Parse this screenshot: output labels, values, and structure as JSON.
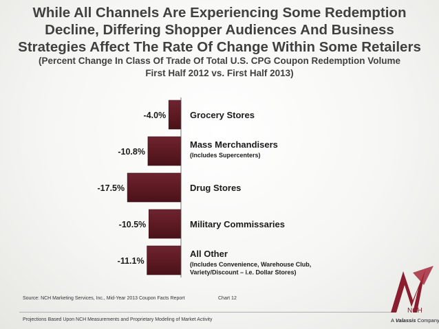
{
  "header": {
    "title_lines": [
      "While All Channels Are Experiencing Some Redemption",
      "Decline, Differing Shopper Audiences And Business",
      "Strategies Affect The Rate Of Change Within Some Retailers"
    ],
    "subtitle_lines": [
      "(Percent Change In Class Of Trade Of Total U.S. CPG Coupon Redemption Volume",
      "First Half 2012 vs. First Half 2013)"
    ]
  },
  "chart_data": {
    "type": "bar",
    "orientation": "horizontal",
    "title": "Percent Change In Class Of Trade Of Total U.S. CPG Coupon Redemption Volume, First Half 2012 vs. First Half 2013",
    "categories": [
      "Grocery Stores",
      "Mass Merchandisers",
      "Drug Stores",
      "Military Commissaries",
      "All Other"
    ],
    "category_notes": [
      "",
      "(Includes Supercenters)",
      "",
      "",
      "(Includes Convenience, Warehouse Club, Variety/Discount – i.e. Dollar Stores)"
    ],
    "values": [
      -4.0,
      -10.8,
      -17.5,
      -10.5,
      -11.1
    ],
    "value_labels": [
      "-4.0%",
      "-10.8%",
      "-17.5%",
      "-10.5%",
      "-11.1%"
    ],
    "xlim": [
      -20,
      0
    ],
    "bar_color": "#5e1a22",
    "grid": false
  },
  "footer": {
    "source": "Source: NCH Marketing Services, Inc., Mid-Year 2013 Coupon Facts Report",
    "chart_number": "Chart 12",
    "projections": "Projections Based Upon NCH Measurements and Proprietary Modeling of Market Activity"
  },
  "logo": {
    "name": "NCH",
    "tagline_prefix": "A",
    "tagline_brand": "Valassis",
    "tagline_suffix": "Company",
    "color": "#8a1d2e"
  }
}
